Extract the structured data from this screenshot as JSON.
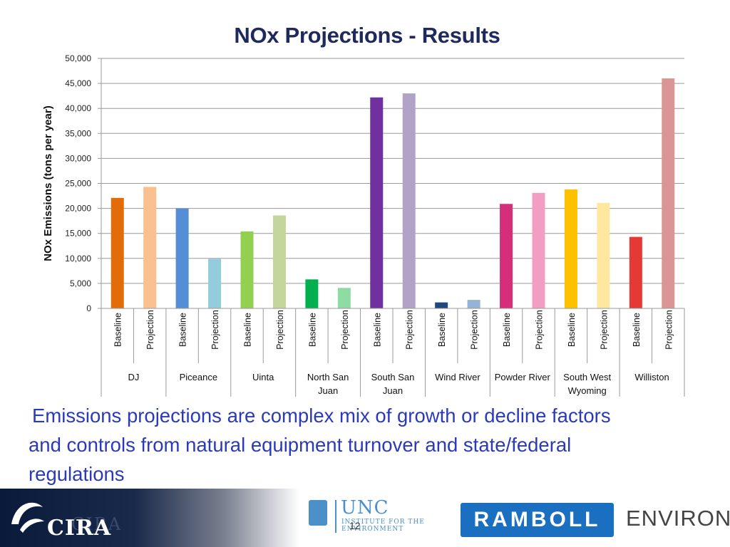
{
  "slide": {
    "title": "NOx Projections - Results",
    "caption_line1": "Emissions projections are complex mix of growth or decline factors",
    "caption_line2": "and controls from natural equipment turnover and state/federal",
    "caption_line3": "regulations",
    "page_number": "12"
  },
  "footer": {
    "cira_logo_text": "CIRA",
    "unc_logo_text": "UNC",
    "unc_logo_subtext": "INSTITUTE FOR THE ENVIRONMENT",
    "ramboll_logo_text": "RAMBOLL",
    "environ_text": "ENVIRON",
    "brand_blue": "#1b6fc0"
  },
  "chart_data": {
    "type": "bar",
    "title": "NOx Projections - Results",
    "ylabel": "NOx Emissions (tons per year)",
    "xlabel": "",
    "ylim": [
      0,
      50000
    ],
    "yticks": [
      0,
      5000,
      10000,
      15000,
      20000,
      25000,
      30000,
      35000,
      40000,
      45000,
      50000
    ],
    "ytick_labels": [
      "0",
      "5,000",
      "10,000",
      "15,000",
      "20,000",
      "25,000",
      "30,000",
      "35,000",
      "40,000",
      "45,000",
      "50,000"
    ],
    "grid": true,
    "legend": "none",
    "bar_labels": [
      "Baseline",
      "Projection"
    ],
    "groups": [
      {
        "name_lines": [
          "DJ"
        ],
        "baseline": 22100,
        "projection": 24300,
        "baseline_color": "#e36c0a",
        "projection_color": "#fac090"
      },
      {
        "name_lines": [
          "Piceance"
        ],
        "baseline": 20000,
        "projection": 9900,
        "baseline_color": "#558ed5",
        "projection_color": "#93cddd"
      },
      {
        "name_lines": [
          "Uinta"
        ],
        "baseline": 15400,
        "projection": 18600,
        "baseline_color": "#92d050",
        "projection_color": "#c3d69b"
      },
      {
        "name_lines": [
          "North San",
          "Juan"
        ],
        "baseline": 5800,
        "projection": 4100,
        "baseline_color": "#00b050",
        "projection_color": "#8fdba4"
      },
      {
        "name_lines": [
          "South San",
          "Juan"
        ],
        "baseline": 42200,
        "projection": 43000,
        "baseline_color": "#7030a0",
        "projection_color": "#b3a2c7"
      },
      {
        "name_lines": [
          "Wind River"
        ],
        "baseline": 1200,
        "projection": 1700,
        "baseline_color": "#1f497d",
        "projection_color": "#95b3d7"
      },
      {
        "name_lines": [
          "Powder River"
        ],
        "baseline": 20900,
        "projection": 23100,
        "baseline_color": "#d62f7a",
        "projection_color": "#f19ec2"
      },
      {
        "name_lines": [
          "South West",
          "Wyoming"
        ],
        "baseline": 23800,
        "projection": 21100,
        "baseline_color": "#ffc000",
        "projection_color": "#ffe89e"
      },
      {
        "name_lines": [
          "Williston"
        ],
        "baseline": 14300,
        "projection": 46000,
        "baseline_color": "#e53935",
        "projection_color": "#d99694"
      }
    ]
  }
}
